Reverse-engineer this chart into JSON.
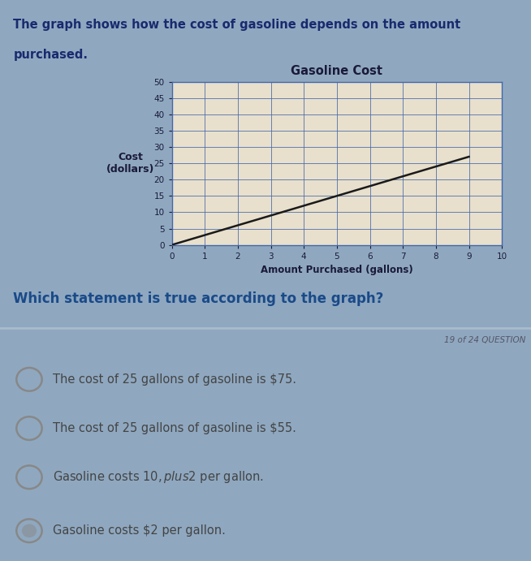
{
  "title": "Gasoline Cost",
  "xlabel": "Amount Purchased (gallons)",
  "ylabel": "Cost\n(dollars)",
  "xlim": [
    0,
    10
  ],
  "ylim": [
    0,
    50
  ],
  "xticks": [
    0,
    1,
    2,
    3,
    4,
    5,
    6,
    7,
    8,
    9,
    10
  ],
  "yticks": [
    0,
    5,
    10,
    15,
    20,
    25,
    30,
    35,
    40,
    45,
    50
  ],
  "line_x": [
    0,
    9
  ],
  "line_y": [
    0,
    27
  ],
  "line_color": "#1a1a1a",
  "bg_color": "#8fa8c0",
  "chart_panel_bg": "#d8cdb4",
  "plot_area_bg": "#e8e0cc",
  "grid_color": "#4466aa",
  "header_text_line1": "The graph shows how the cost of gasoline depends on the amount",
  "header_text_line2": "purchased.",
  "question_text": "Which statement is true according to the graph?",
  "question_color": "#1a4a88",
  "options": [
    "The cost of 25 gallons of gasoline is $75.",
    "The cost of 25 gallons of gasoline is $55.",
    "Gasoline costs $10, plus $2 per gallon.",
    "Gasoline costs $2 per gallon."
  ],
  "options_italic": [
    false,
    false,
    false,
    false
  ],
  "question_num": "19 of 24 QUESTION",
  "header_color": "#1a2a6e",
  "options_bg": "#c8bfa8",
  "title_color": "#1a1a3a",
  "axis_label_color": "#1a1a3a",
  "tick_color": "#1a1a3a",
  "option_text_color": "#444444",
  "radio_color": "#888888",
  "divider_color": "#aabbcc",
  "question_num_color": "#555566"
}
